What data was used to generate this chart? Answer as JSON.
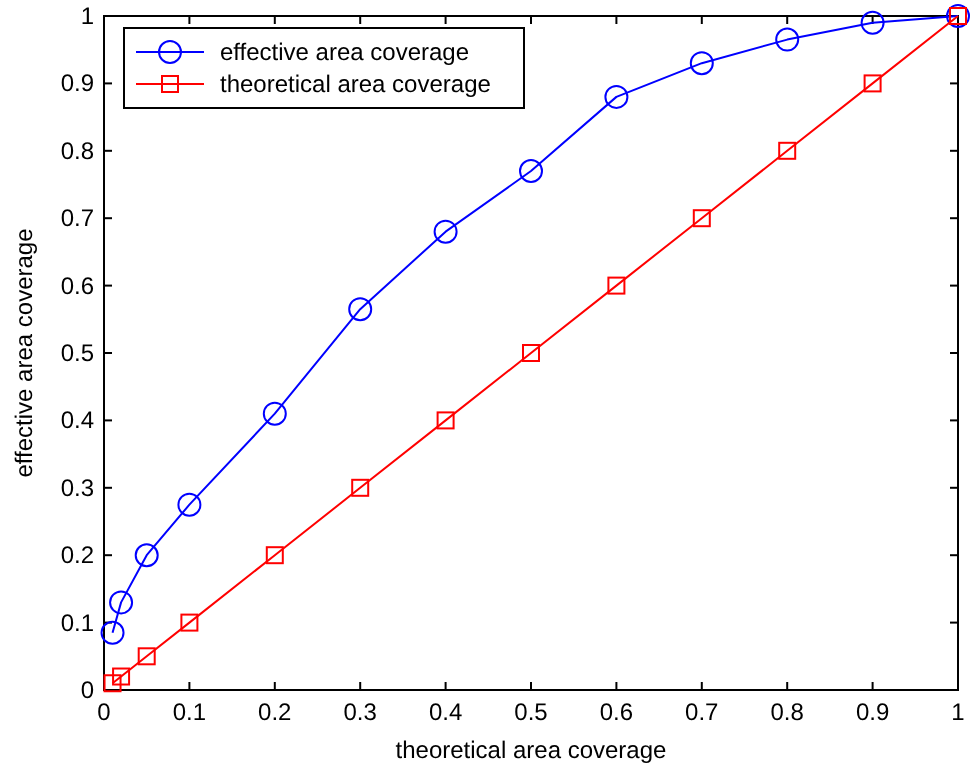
{
  "chart_data": {
    "type": "line",
    "xlabel": "theoretical area coverage",
    "ylabel": "effective area coverage",
    "x": [
      0.01,
      0.02,
      0.05,
      0.1,
      0.2,
      0.3,
      0.4,
      0.5,
      0.6,
      0.7,
      0.8,
      0.9,
      1.0
    ],
    "series": [
      {
        "name": "effective area coverage",
        "color": "#0000ff",
        "marker": "circle",
        "values": [
          0.085,
          0.13,
          0.2,
          0.275,
          0.41,
          0.565,
          0.68,
          0.77,
          0.88,
          0.93,
          0.965,
          0.99,
          1.0
        ]
      },
      {
        "name": "theoretical area coverage",
        "color": "#ff0000",
        "marker": "square",
        "values": [
          0.01,
          0.02,
          0.05,
          0.1,
          0.2,
          0.3,
          0.4,
          0.5,
          0.6,
          0.7,
          0.8,
          0.9,
          1.0
        ]
      }
    ],
    "xlim": [
      0,
      1
    ],
    "ylim": [
      0,
      1
    ],
    "xticks": [
      0,
      0.1,
      0.2,
      0.3,
      0.4,
      0.5,
      0.6,
      0.7,
      0.8,
      0.9,
      1
    ],
    "yticks": [
      0,
      0.1,
      0.2,
      0.3,
      0.4,
      0.5,
      0.6,
      0.7,
      0.8,
      0.9,
      1
    ],
    "grid": false,
    "legend": "top left",
    "line_style": "solid"
  }
}
